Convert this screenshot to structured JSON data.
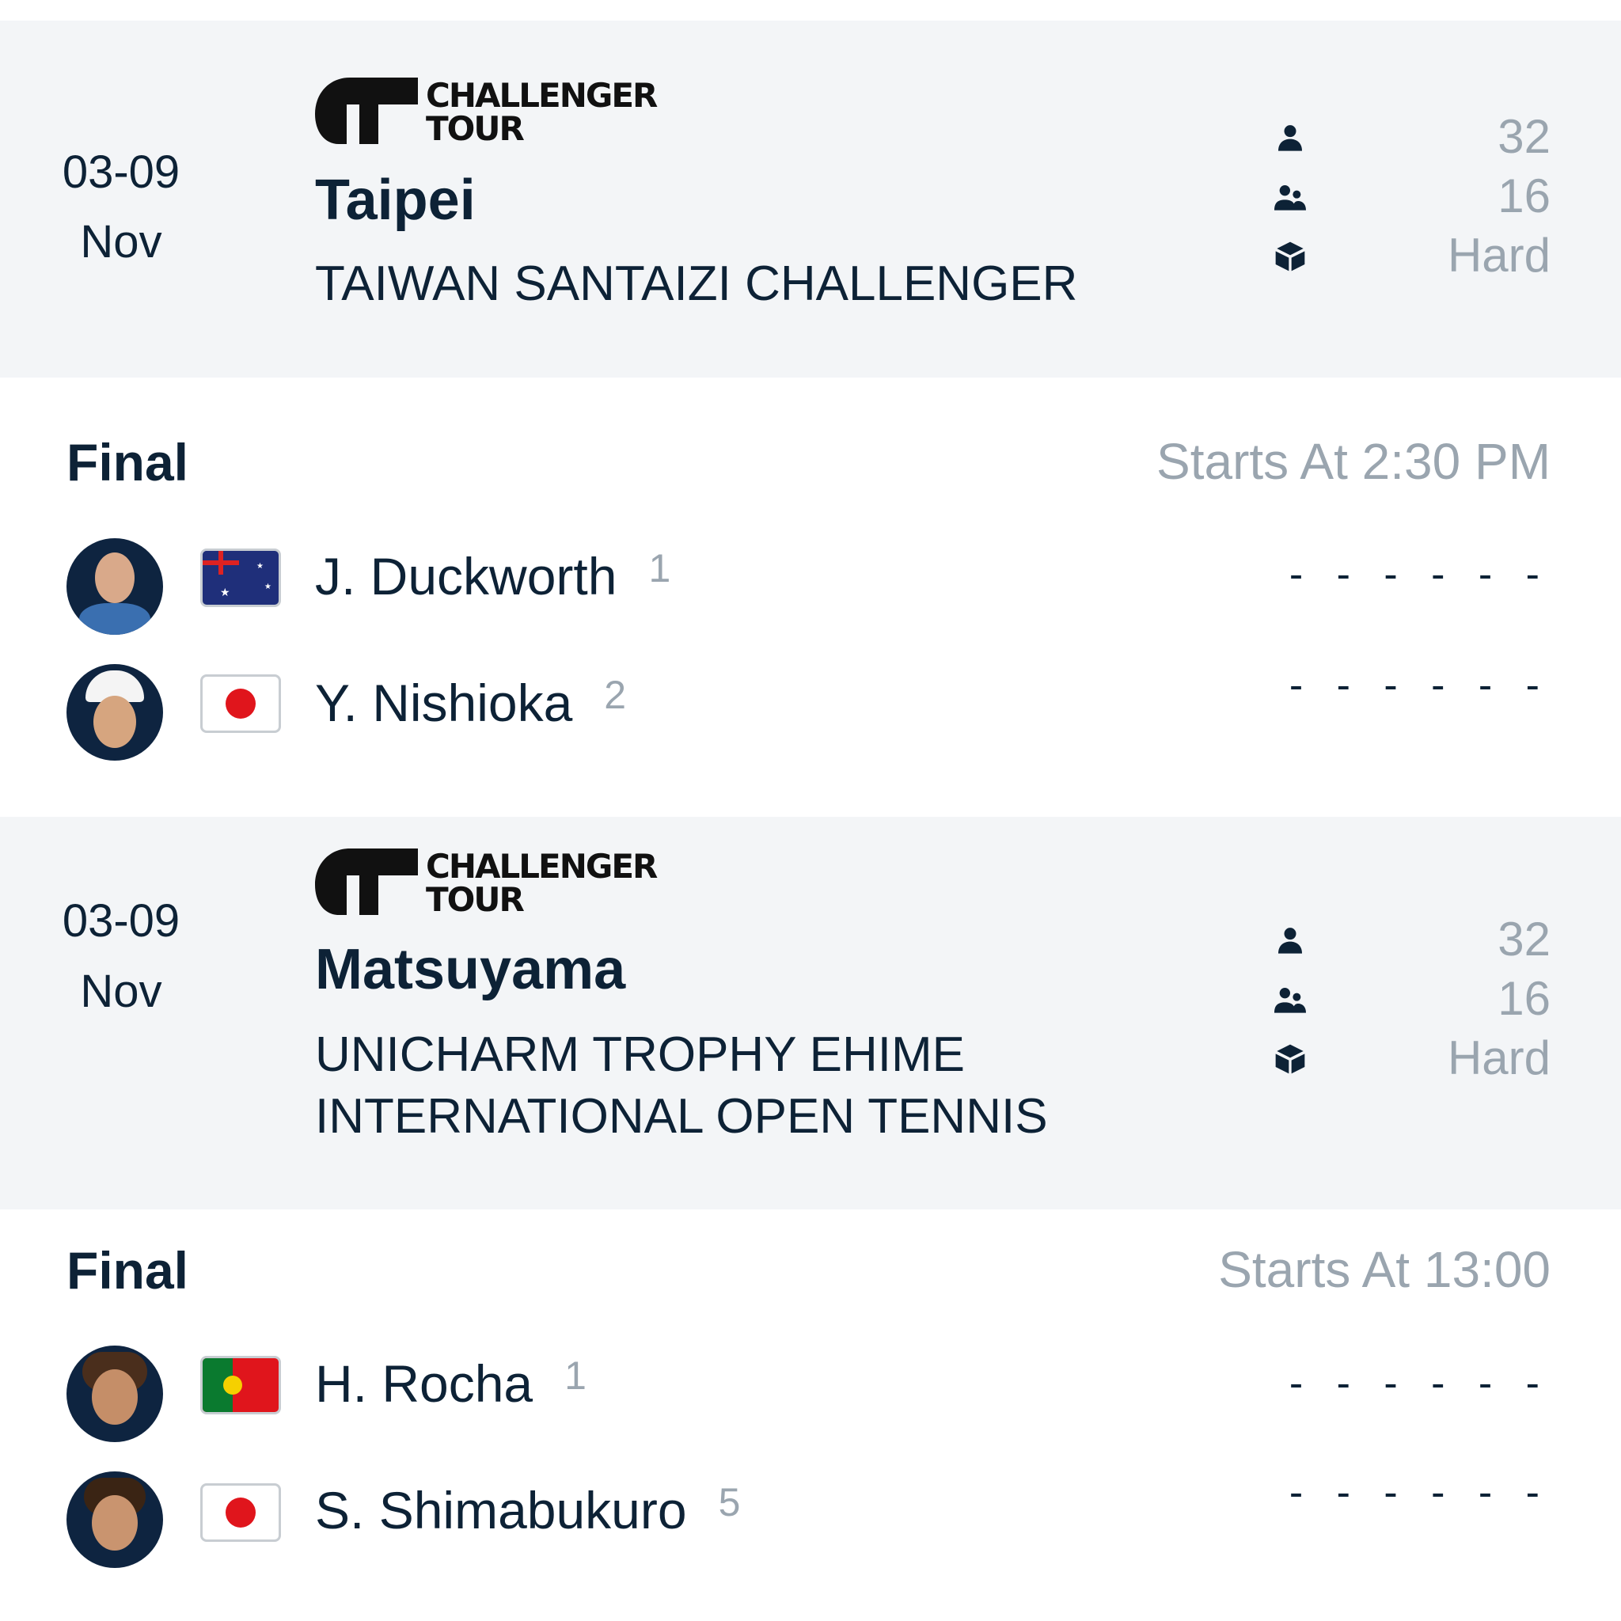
{
  "tournaments": [
    {
      "date_range": "03-09",
      "month": "Nov",
      "logo_text": [
        "CHALLENGER",
        "TOUR"
      ],
      "city": "Taipei",
      "name_lines": [
        "TAIWAN SANTAIZI CHALLENGER"
      ],
      "stats": {
        "singles_draw": "32",
        "doubles_draw": "16",
        "surface": "Hard"
      },
      "match": {
        "round": "Final",
        "start": "Starts At 2:30 PM",
        "players": [
          {
            "name": "J. Duckworth",
            "seed": "1",
            "country": "Australia",
            "score": "- - - - - -"
          },
          {
            "name": "Y. Nishioka",
            "seed": "2",
            "country": "Japan",
            "score": "- - - - - -"
          }
        ]
      }
    },
    {
      "date_range": "03-09",
      "month": "Nov",
      "logo_text": [
        "CHALLENGER",
        "TOUR"
      ],
      "city": "Matsuyama",
      "name_lines": [
        "UNICHARM TROPHY EHIME",
        "INTERNATIONAL OPEN TENNIS"
      ],
      "stats": {
        "singles_draw": "32",
        "doubles_draw": "16",
        "surface": "Hard"
      },
      "match": {
        "round": "Final",
        "start": "Starts At 13:00",
        "players": [
          {
            "name": "H. Rocha",
            "seed": "1",
            "country": "Portugal",
            "score": "- - - - - -"
          },
          {
            "name": "S. Shimabukuro",
            "seed": "5",
            "country": "Japan",
            "score": "- - - - - -"
          }
        ]
      }
    }
  ],
  "colors": {
    "text": "#0d2236",
    "muted": "#9aa5af",
    "card_bg": "#f3f5f7"
  }
}
